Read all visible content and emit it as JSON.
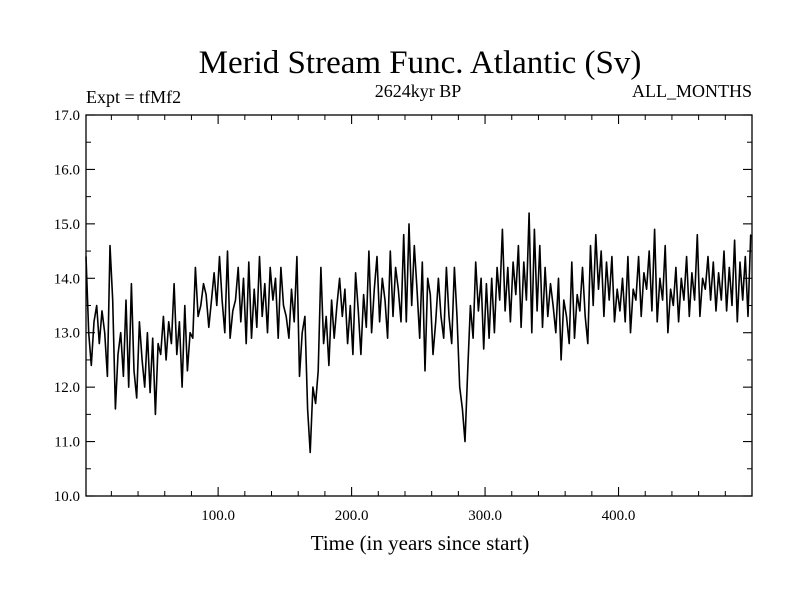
{
  "chart_data": {
    "type": "line",
    "title": "Merid Stream Func. Atlantic (Sv)",
    "left_label": "Expt = tfMf2",
    "center_label": "2624kyr BP",
    "right_label": "ALL_MONTHS",
    "xlabel": "Time (in years since start)",
    "ylabel": "",
    "xlim": [
      1,
      500
    ],
    "ylim": [
      10.0,
      17.0
    ],
    "xticks": [
      100,
      200,
      300,
      400
    ],
    "xtick_labels": [
      "100.0",
      "200.0",
      "300.0",
      "400.0"
    ],
    "yticks": [
      10,
      11,
      12,
      13,
      14,
      15,
      16,
      17
    ],
    "ytick_labels": [
      "10.0",
      "11.0",
      "12.0",
      "13.0",
      "14.0",
      "15.0",
      "16.0",
      "17.0"
    ],
    "grid": false,
    "series": [
      {
        "name": "Merid Stream Func. Atlantic",
        "x_start": 1,
        "x_step": 2,
        "values": [
          14.4,
          13.0,
          12.4,
          13.2,
          13.5,
          12.8,
          13.4,
          13.0,
          12.2,
          14.6,
          13.6,
          11.6,
          12.6,
          13.0,
          12.2,
          13.6,
          12.0,
          13.9,
          12.3,
          11.8,
          13.2,
          12.5,
          12.0,
          13.0,
          11.9,
          12.9,
          11.5,
          12.8,
          12.6,
          13.3,
          12.5,
          13.2,
          12.8,
          13.9,
          12.6,
          13.2,
          12.0,
          13.5,
          12.3,
          13.0,
          12.9,
          14.2,
          13.3,
          13.5,
          13.9,
          13.7,
          13.1,
          13.6,
          14.1,
          13.5,
          14.4,
          13.6,
          13.0,
          14.5,
          12.9,
          13.4,
          13.6,
          14.2,
          13.2,
          14.0,
          12.8,
          14.3,
          12.9,
          13.8,
          13.1,
          14.4,
          13.3,
          13.9,
          13.0,
          14.2,
          13.6,
          14.0,
          12.9,
          14.2,
          13.5,
          13.3,
          12.9,
          13.8,
          13.2,
          14.4,
          12.2,
          13.0,
          13.3,
          11.6,
          10.8,
          12.0,
          11.7,
          12.3,
          14.2,
          12.8,
          13.3,
          12.4,
          13.6,
          12.9,
          13.5,
          14.0,
          13.3,
          13.8,
          12.8,
          13.5,
          12.6,
          14.1,
          13.4,
          12.6,
          13.7,
          13.1,
          14.5,
          13.0,
          13.8,
          14.4,
          13.2,
          14.0,
          13.6,
          12.9,
          14.5,
          13.3,
          14.2,
          13.8,
          13.2,
          14.8,
          13.2,
          15.0,
          13.5,
          14.6,
          13.8,
          12.9,
          14.3,
          12.3,
          14.0,
          13.7,
          12.6,
          13.2,
          14.0,
          13.3,
          12.9,
          14.2,
          13.3,
          12.8,
          14.2,
          13.3,
          12.0,
          11.6,
          11.0,
          12.3,
          13.5,
          12.9,
          14.3,
          13.4,
          14.0,
          12.7,
          13.9,
          12.9,
          14.0,
          13.0,
          14.2,
          13.6,
          14.9,
          13.4,
          14.2,
          13.2,
          14.3,
          13.7,
          14.6,
          13.1,
          14.3,
          13.6,
          15.2,
          13.0,
          14.9,
          13.4,
          14.6,
          13.1,
          14.2,
          13.3,
          13.9,
          13.5,
          13.0,
          14.0,
          12.5,
          13.6,
          13.3,
          12.8,
          14.3,
          12.9,
          13.7,
          13.4,
          14.2,
          13.3,
          12.8,
          14.6,
          13.5,
          14.8,
          13.8,
          14.5,
          13.3,
          14.3,
          13.6,
          14.4,
          13.2,
          13.8,
          13.4,
          14.0,
          13.2,
          14.4,
          13.0,
          13.8,
          13.6,
          14.4,
          13.3,
          14.1,
          13.8,
          14.5,
          13.4,
          14.9,
          13.2,
          14.0,
          13.6,
          14.6,
          13.0,
          13.8,
          13.5,
          14.2,
          13.2,
          14.0,
          13.6,
          14.4,
          13.3,
          14.1,
          13.6,
          14.8,
          13.3,
          14.0,
          13.8,
          14.4,
          13.6,
          14.3,
          13.4,
          14.1,
          13.6,
          14.5,
          13.4,
          14.2,
          13.5,
          14.7,
          13.2,
          14.3,
          13.6,
          14.4,
          13.3,
          14.8
        ]
      }
    ]
  }
}
